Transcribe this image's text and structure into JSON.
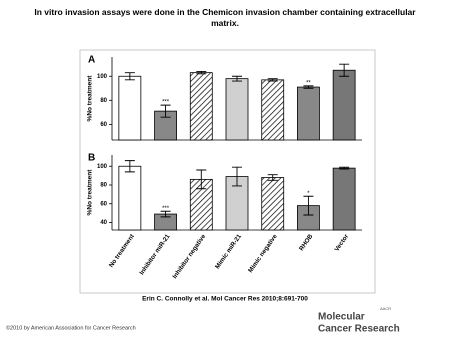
{
  "title": "In vitro invasion assays were done in the Chemicon invasion chamber containing extracellular matrix.",
  "chart_data": [
    {
      "type": "bar",
      "panel": "A",
      "y_label": "%No treatment",
      "values": [
        100,
        71,
        103,
        98,
        97,
        91,
        105
      ],
      "errors": [
        3,
        5,
        1,
        2,
        1,
        1,
        5
      ],
      "significance": [
        null,
        "***",
        null,
        null,
        null,
        "**",
        null
      ],
      "bar_styles": [
        "#ffffff",
        "#888888",
        "hatch",
        "#d0d0d0",
        "hatch",
        "#888888",
        "#777777"
      ],
      "ylim": [
        47,
        116
      ],
      "yticks": [
        60,
        80,
        100
      ]
    },
    {
      "type": "bar",
      "panel": "B",
      "y_label": "%No treatment",
      "categories": [
        "No treatment",
        "Inhibitor miR-21",
        "Inhibitor negative",
        "Mimic miR-21",
        "Mimic negative",
        "RHOB",
        "Vector"
      ],
      "values": [
        100,
        49,
        86,
        89,
        88,
        58,
        98
      ],
      "errors": [
        6,
        3,
        10,
        10,
        3,
        10,
        1
      ],
      "significance": [
        null,
        "***",
        null,
        null,
        null,
        "*",
        null
      ],
      "bar_styles": [
        "#ffffff",
        "#888888",
        "hatch",
        "#d0d0d0",
        "hatch",
        "#888888",
        "#777777"
      ],
      "ylim": [
        32,
        112
      ],
      "yticks": [
        40,
        60,
        80,
        100
      ]
    }
  ],
  "citation": "Erin C. Connolly et al. Mol Cancer Res 2010;8:691-700",
  "copyright": "©2010 by American Association for Cancer Research",
  "logo": {
    "org": "AACR",
    "line1": "Molecular",
    "line2": "Cancer Research"
  }
}
